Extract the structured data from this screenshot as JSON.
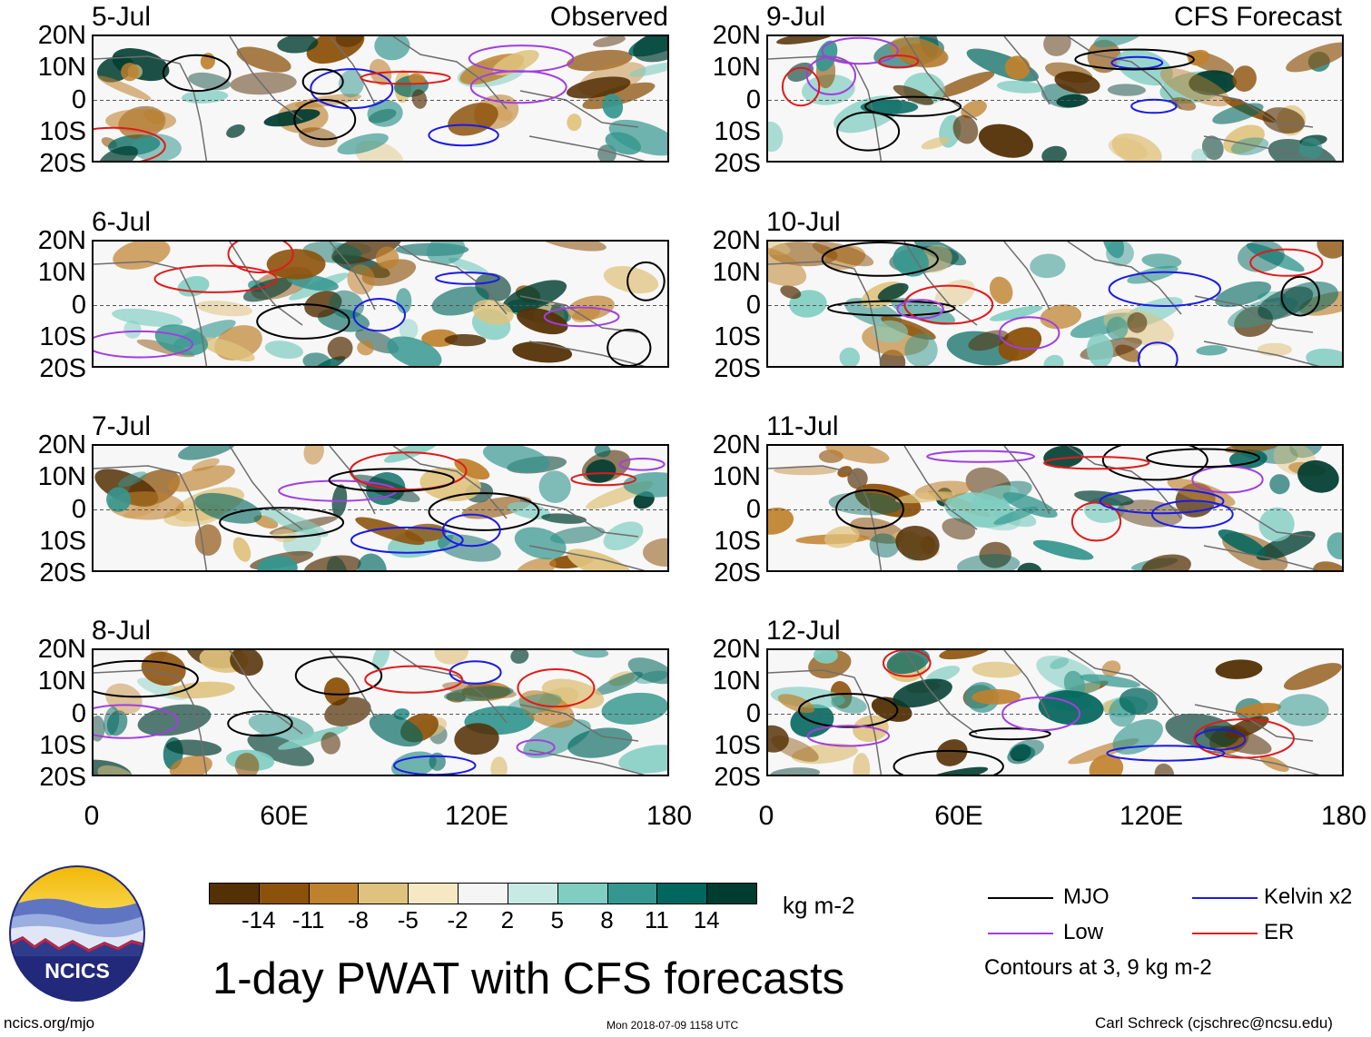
{
  "title": "1-day PWAT with CFS forecasts",
  "logo_text": "NCICS",
  "footer": {
    "left": "ncics.org/mjo",
    "center": "Mon 2018-07-09 1158 UTC",
    "right": "Carl Schreck (cjschrec@ncsu.edu)"
  },
  "columns": {
    "left_label": "Observed",
    "right_label": "CFS Forecast"
  },
  "colorbar": {
    "unit": "kg m-2",
    "colors": [
      "#543005",
      "#8c510a",
      "#bf812d",
      "#dfc27d",
      "#f6e8c3",
      "#f5f5f5",
      "#c7eae5",
      "#80cdc1",
      "#35978f",
      "#01665e",
      "#003c30"
    ],
    "tick_labels": [
      "-14",
      "-11",
      "-8",
      "-5",
      "-2",
      "2",
      "5",
      "8",
      "11",
      "14"
    ]
  },
  "legend": {
    "items": [
      {
        "name": "MJO",
        "color": "#000000"
      },
      {
        "name": "Kelvin x2",
        "color": "#1a1ae6"
      },
      {
        "name": "Low",
        "color": "#a23ee0"
      },
      {
        "name": "ER",
        "color": "#e01a1a"
      }
    ],
    "note": "Contours at 3, 9 kg m-2"
  },
  "chart_data": [
    {
      "type": "heatmap",
      "title": "5-Jul",
      "column": "Observed",
      "xlim": [
        0,
        180
      ],
      "ylim": [
        -20,
        20
      ]
    },
    {
      "type": "heatmap",
      "title": "6-Jul",
      "column": "Observed",
      "xlim": [
        0,
        180
      ],
      "ylim": [
        -20,
        20
      ]
    },
    {
      "type": "heatmap",
      "title": "7-Jul",
      "column": "Observed",
      "xlim": [
        0,
        180
      ],
      "ylim": [
        -20,
        20
      ]
    },
    {
      "type": "heatmap",
      "title": "8-Jul",
      "column": "Observed",
      "xlim": [
        0,
        180
      ],
      "ylim": [
        -20,
        20
      ]
    },
    {
      "type": "heatmap",
      "title": "9-Jul",
      "column": "CFS Forecast",
      "xlim": [
        0,
        180
      ],
      "ylim": [
        -20,
        20
      ]
    },
    {
      "type": "heatmap",
      "title": "10-Jul",
      "column": "CFS Forecast",
      "xlim": [
        0,
        180
      ],
      "ylim": [
        -20,
        20
      ]
    },
    {
      "type": "heatmap",
      "title": "11-Jul",
      "column": "CFS Forecast",
      "xlim": [
        0,
        180
      ],
      "ylim": [
        -20,
        20
      ]
    },
    {
      "type": "heatmap",
      "title": "12-Jul",
      "column": "CFS Forecast",
      "xlim": [
        0,
        180
      ],
      "ylim": [
        -20,
        20
      ]
    }
  ],
  "axes": {
    "y_tick_labels": [
      "20N",
      "10N",
      "0",
      "10S",
      "20S"
    ],
    "x_tick_labels": [
      "0",
      "60E",
      "120E",
      "180"
    ]
  }
}
